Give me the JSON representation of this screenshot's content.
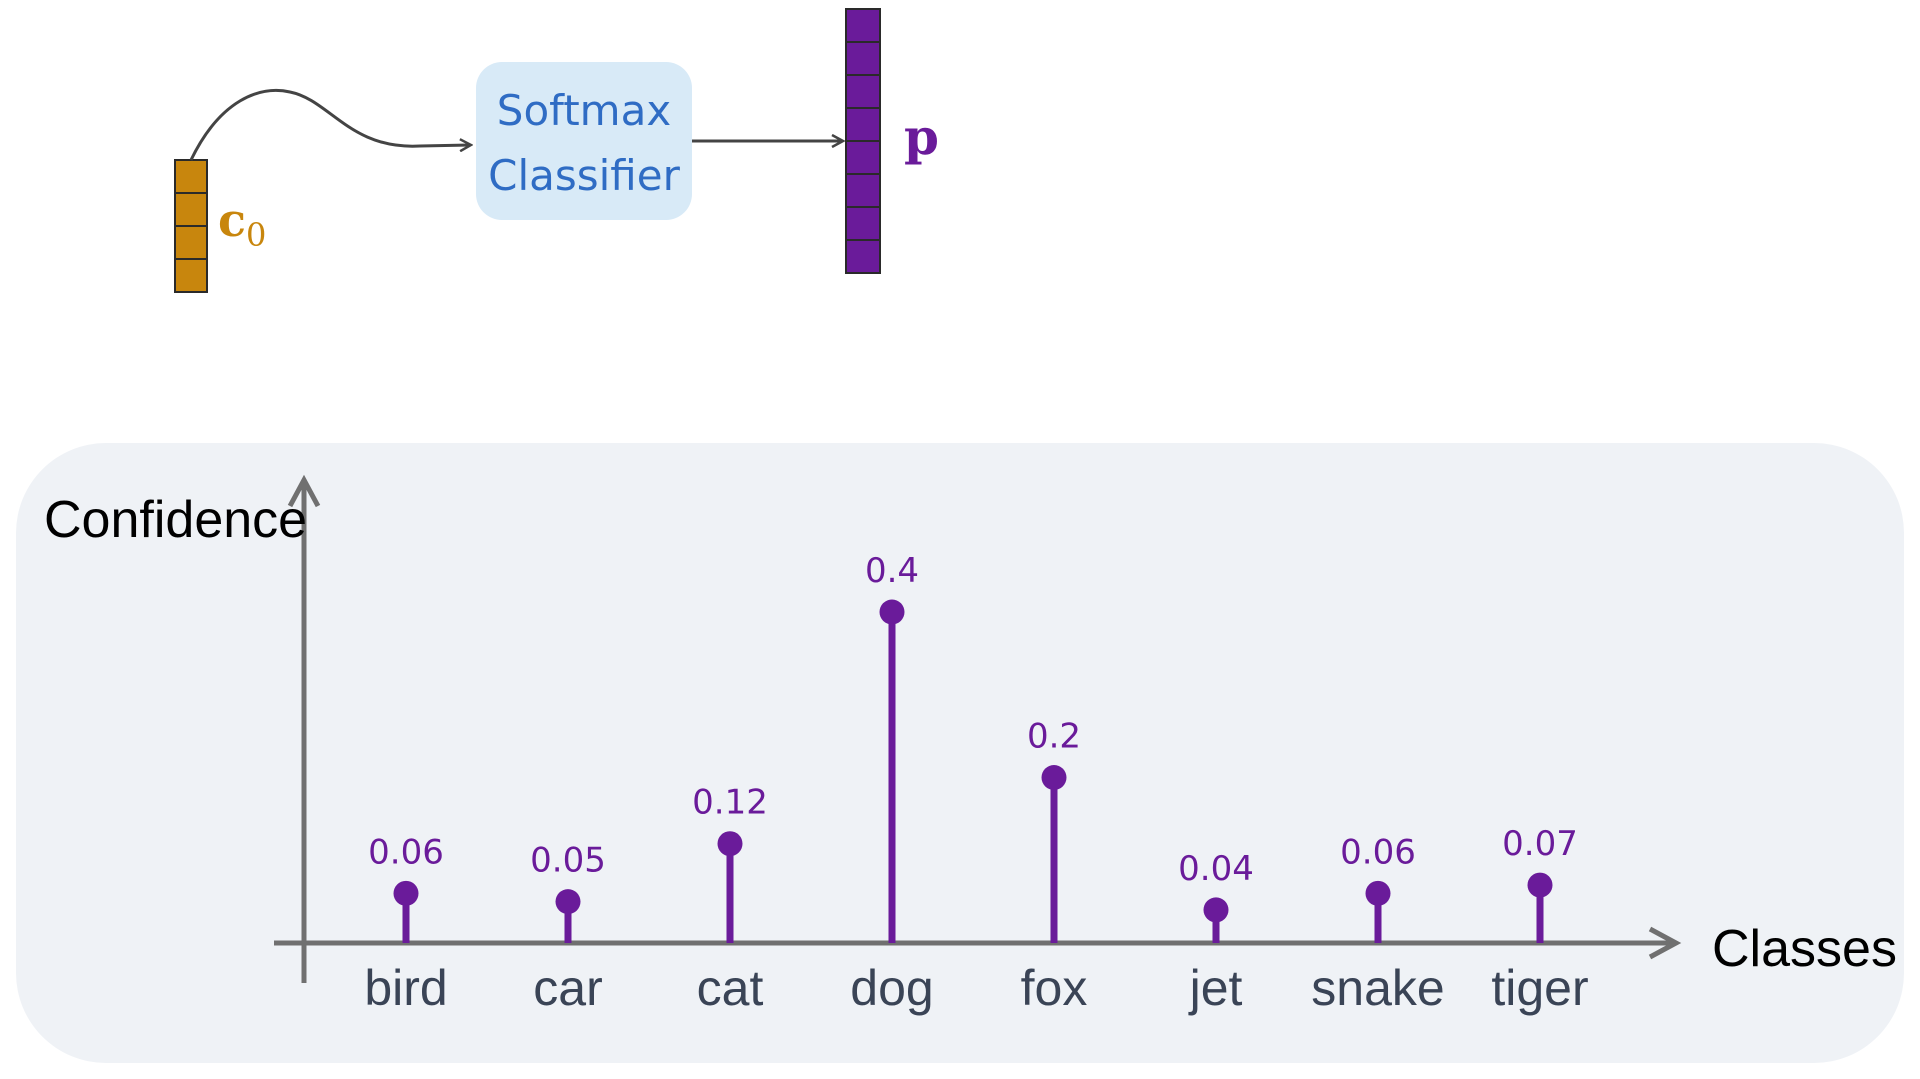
{
  "diagram": {
    "input_vector": {
      "label": "c",
      "subscript": "0",
      "cells": 4,
      "color": "#c8860d"
    },
    "classifier": {
      "line1": "Softmax",
      "line2": "Classifier",
      "fill": "#d8eaf7",
      "text_color": "#2f6cc4"
    },
    "output_vector": {
      "label": "p",
      "cells": 8,
      "color": "#6a1b9a"
    }
  },
  "chart_data": {
    "type": "stem",
    "ylabel": "Confidence",
    "xlabel": "Classes",
    "categories": [
      "bird",
      "car",
      "cat",
      "dog",
      "fox",
      "jet",
      "snake",
      "tiger"
    ],
    "values": [
      0.06,
      0.05,
      0.12,
      0.4,
      0.2,
      0.04,
      0.06,
      0.07
    ],
    "value_labels": [
      "0.06",
      "0.05",
      "0.12",
      "0.4",
      "0.2",
      "0.04",
      "0.06",
      "0.07"
    ],
    "ylim": [
      0,
      0.4
    ],
    "grid": false,
    "stem_color": "#6a1b9a",
    "axis_color": "#707070"
  }
}
